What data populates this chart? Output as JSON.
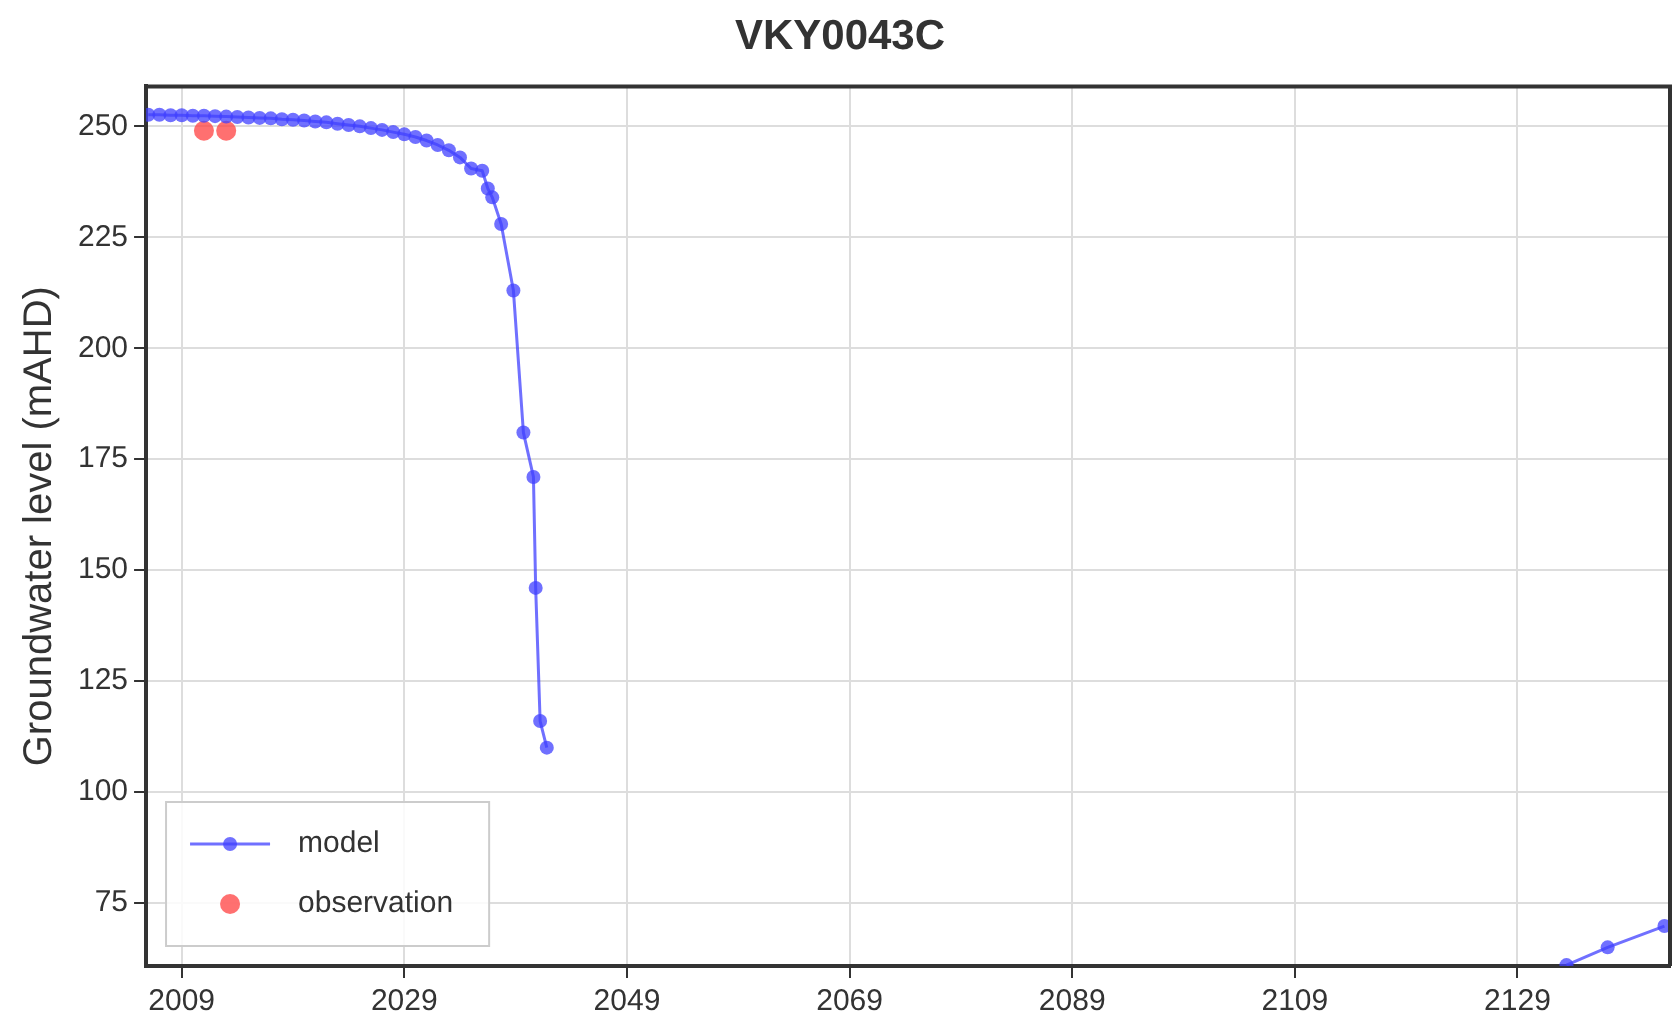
{
  "chart_data": {
    "type": "line",
    "title": "VKY0043C",
    "ylabel": "Groundwater level (mAHD)",
    "xlim": [
      2005.8,
      2142.7
    ],
    "ylim": [
      60.8,
      259
    ],
    "xticks": [
      2009,
      2029,
      2049,
      2069,
      2089,
      2109,
      2129
    ],
    "yticks": [
      75,
      100,
      125,
      150,
      175,
      200,
      225,
      250
    ],
    "grid": true,
    "legend": "bottom left",
    "marker": "circle",
    "series": [
      {
        "name": "model",
        "color": "#4040ff",
        "x": [
          2006,
          2007,
          2008,
          2009,
          2010,
          2011,
          2012,
          2013,
          2014,
          2015,
          2016,
          2017,
          2018,
          2019,
          2020,
          2021,
          2022,
          2023,
          2024,
          2025,
          2026,
          2027,
          2028,
          2029,
          2030,
          2031,
          2032,
          2033,
          2034,
          2035,
          2036,
          2036.5,
          2036.9,
          2037.7,
          2038.8,
          2039.7,
          2040.6,
          2040.8,
          2041.2,
          2041.8,
          2042,
          2133.4,
          2137.1,
          2142.2
        ],
        "values": [
          252.6,
          252.6,
          252.5,
          252.5,
          252.4,
          252.4,
          252.3,
          252.2,
          252.1,
          252,
          251.9,
          251.8,
          251.6,
          251.5,
          251.3,
          251.1,
          250.9,
          250.6,
          250.3,
          250,
          249.6,
          249.2,
          248.7,
          248.2,
          247.6,
          246.8,
          245.8,
          244.6,
          243,
          240.5,
          240,
          236,
          234,
          228,
          213,
          181,
          171,
          146,
          116,
          110,
          null,
          61,
          65,
          69.8
        ]
      },
      {
        "name": "observation",
        "type": "scatter",
        "color": "#ff4040",
        "x": [
          2011,
          2013
        ],
        "values": [
          249,
          249
        ]
      }
    ]
  }
}
